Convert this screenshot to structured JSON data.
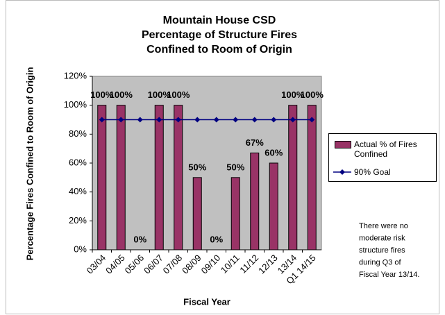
{
  "chart_data": {
    "type": "bar",
    "title": [
      "Mountain House CSD",
      "Percentage of Structure Fires",
      "Confined to Room of Origin"
    ],
    "x_label": "Fiscal Year",
    "y_label": "Percentage Fires Confined to Room of Origin",
    "categories": [
      "03/04",
      "04/05",
      "05/06",
      "06/07",
      "07/08",
      "08/09",
      "09/10",
      "10/11",
      "11/12",
      "12/13",
      "13/14",
      "Q1 14/15"
    ],
    "series": [
      {
        "name": "Actual % of Fires Confined",
        "type": "bar",
        "color": "#993366",
        "values": [
          100,
          100,
          0,
          100,
          100,
          50,
          0,
          50,
          67,
          60,
          100,
          100
        ],
        "value_labels": [
          "100%",
          "100%",
          "0%",
          "100%",
          "100%",
          "50%",
          "0%",
          "50%",
          "67%",
          "60%",
          "100%",
          "100%"
        ]
      },
      {
        "name": "90% Goal",
        "type": "line",
        "color": "#000080",
        "values": [
          90,
          90,
          90,
          90,
          90,
          90,
          90,
          90,
          90,
          90,
          90,
          90
        ]
      }
    ],
    "ylim": [
      0,
      120
    ],
    "yticks": [
      {
        "value": 0,
        "label": "0%"
      },
      {
        "value": 20,
        "label": "20%"
      },
      {
        "value": 40,
        "label": "40%"
      },
      {
        "value": 60,
        "label": "60%"
      },
      {
        "value": 80,
        "label": "80%"
      },
      {
        "value": 100,
        "label": "100%"
      },
      {
        "value": 120,
        "label": "120%"
      }
    ],
    "grid": false,
    "plot_background": "#c0c0c0",
    "legend": "right",
    "annotation": [
      "There were no",
      "moderate risk",
      "structure fires",
      "during Q3 of",
      "Fiscal Year 13/14."
    ]
  }
}
